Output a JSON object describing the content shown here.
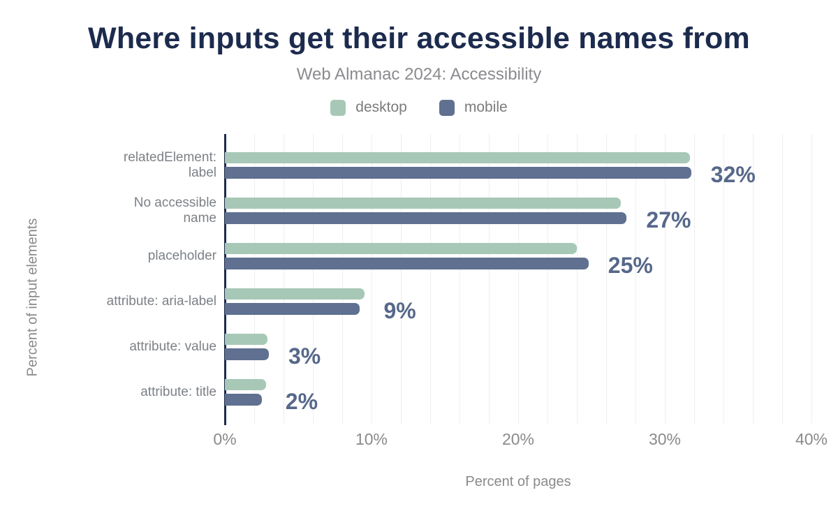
{
  "figure": {
    "title": "Where inputs get their accessible names from",
    "subtitle": "Web Almanac 2024: Accessibility"
  },
  "legend": {
    "items": [
      {
        "label": "desktop",
        "color": "#a7c8b6"
      },
      {
        "label": "mobile",
        "color": "#5f7090"
      }
    ]
  },
  "axes": {
    "x_title": "Percent of pages",
    "y_title": "Percent of input elements",
    "x_ticks": [
      {
        "label": "0%",
        "value": 0
      },
      {
        "label": "10%",
        "value": 10
      },
      {
        "label": "20%",
        "value": 20
      },
      {
        "label": "30%",
        "value": 30
      },
      {
        "label": "40%",
        "value": 40
      }
    ],
    "x_max": 40,
    "grid_step_pct": 2
  },
  "chart_data": {
    "type": "bar",
    "orientation": "horizontal",
    "title": "Where inputs get their accessible names from",
    "subtitle": "Web Almanac 2024: Accessibility",
    "xlabel": "Percent of pages",
    "ylabel": "Percent of input elements",
    "xlim": [
      0,
      40
    ],
    "grid": "vertical gridlines every 2%",
    "legend_position": "top-center",
    "categories": [
      "relatedElement: label",
      "No accessible name",
      "placeholder",
      "attribute: aria-label",
      "attribute: value",
      "attribute: title"
    ],
    "category_display_lines": [
      [
        "relatedElement:",
        "label"
      ],
      [
        "No accessible",
        "name"
      ],
      [
        "placeholder"
      ],
      [
        "attribute: aria-label"
      ],
      [
        "attribute: value"
      ],
      [
        "attribute: title"
      ]
    ],
    "series": [
      {
        "name": "desktop",
        "color": "#a7c8b6",
        "values": [
          31.7,
          27.0,
          24.0,
          9.5,
          2.9,
          2.8
        ]
      },
      {
        "name": "mobile",
        "color": "#5f7090",
        "values": [
          31.8,
          27.4,
          24.8,
          9.2,
          3.0,
          2.5
        ]
      }
    ],
    "value_labels": [
      "32%",
      "27%",
      "25%",
      "9%",
      "3%",
      "2%"
    ]
  },
  "colors": {
    "title": "#1c2b4d",
    "subtitle": "#8b8b8f",
    "axis": "#1b2b4a",
    "grid": "#eeeeef",
    "tick": "#8a8a8a",
    "category": "#7c8187",
    "value_label": "#56688a",
    "desktop_bar": "#a7c8b6",
    "mobile_bar": "#5f7090",
    "background": "#ffffff"
  }
}
